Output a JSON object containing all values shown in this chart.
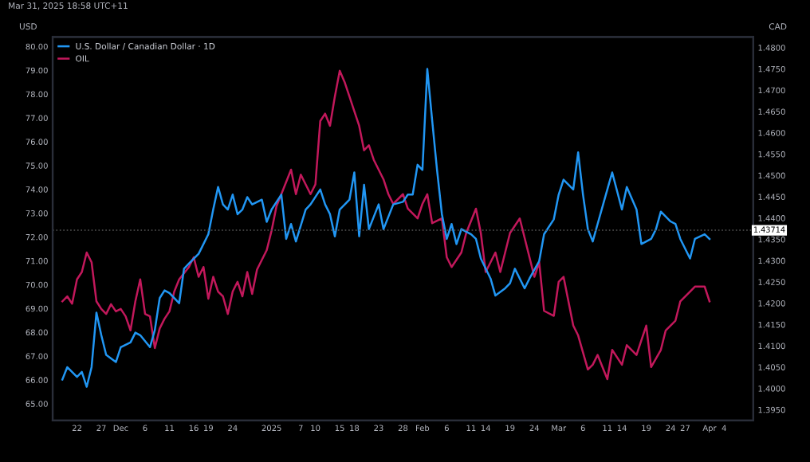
{
  "chart_data": {
    "type": "line",
    "ylabel": "USD",
    "y2label": "CAD",
    "annotations": [
      "Mar 31, 2025 18:58 UTC+11"
    ],
    "xlim": [
      "2024-11-17",
      "2025-04-10"
    ],
    "xticks": [
      {
        "value": "2024-11-22",
        "label": "22"
      },
      {
        "value": "2024-11-27",
        "label": "27"
      },
      {
        "value": "2024-12-01",
        "label": "Dec"
      },
      {
        "value": "2024-12-06",
        "label": "6"
      },
      {
        "value": "2024-12-11",
        "label": "11"
      },
      {
        "value": "2024-12-16",
        "label": "16"
      },
      {
        "value": "2024-12-19",
        "label": "19"
      },
      {
        "value": "2024-12-24",
        "label": "24"
      },
      {
        "value": "2025-01-01",
        "label": "2025"
      },
      {
        "value": "2025-01-07",
        "label": "7"
      },
      {
        "value": "2025-01-10",
        "label": "10"
      },
      {
        "value": "2025-01-15",
        "label": "15"
      },
      {
        "value": "2025-01-18",
        "label": "18"
      },
      {
        "value": "2025-01-23",
        "label": "23"
      },
      {
        "value": "2025-01-28",
        "label": "28"
      },
      {
        "value": "2025-02-01",
        "label": "Feb"
      },
      {
        "value": "2025-02-06",
        "label": "6"
      },
      {
        "value": "2025-02-11",
        "label": "11"
      },
      {
        "value": "2025-02-14",
        "label": "14"
      },
      {
        "value": "2025-02-19",
        "label": "19"
      },
      {
        "value": "2025-02-24",
        "label": "24"
      },
      {
        "value": "2025-03-01",
        "label": "Mar"
      },
      {
        "value": "2025-03-06",
        "label": "6"
      },
      {
        "value": "2025-03-11",
        "label": "11"
      },
      {
        "value": "2025-03-14",
        "label": "14"
      },
      {
        "value": "2025-03-19",
        "label": "19"
      },
      {
        "value": "2025-03-24",
        "label": "24"
      },
      {
        "value": "2025-03-27",
        "label": "27"
      },
      {
        "value": "2025-04-01",
        "label": "Apr"
      },
      {
        "value": "2025-04-04",
        "label": "4"
      }
    ],
    "ylim": [
      64.3,
      80.4
    ],
    "yticks": [
      {
        "value": 65,
        "label": "65.00"
      },
      {
        "value": 66,
        "label": "66.00"
      },
      {
        "value": 67,
        "label": "67.00"
      },
      {
        "value": 68,
        "label": "68.00"
      },
      {
        "value": 69,
        "label": "69.00"
      },
      {
        "value": 70,
        "label": "70.00"
      },
      {
        "value": 71,
        "label": "71.00"
      },
      {
        "value": 72,
        "label": "72.00"
      },
      {
        "value": 73,
        "label": "73.00"
      },
      {
        "value": 74,
        "label": "74.00"
      },
      {
        "value": 75,
        "label": "75.00"
      },
      {
        "value": 76,
        "label": "76.00"
      },
      {
        "value": 77,
        "label": "77.00"
      },
      {
        "value": 78,
        "label": "78.00"
      },
      {
        "value": 79,
        "label": "79.00"
      },
      {
        "value": 80,
        "label": "80.00"
      }
    ],
    "y2lim": [
      1.3925,
      1.4825
    ],
    "y2ticks": [
      {
        "value": 1.395,
        "label": "1.3950"
      },
      {
        "value": 1.4,
        "label": "1.4000"
      },
      {
        "value": 1.405,
        "label": "1.4050"
      },
      {
        "value": 1.41,
        "label": "1.4100"
      },
      {
        "value": 1.415,
        "label": "1.4150"
      },
      {
        "value": 1.42,
        "label": "1.4200"
      },
      {
        "value": 1.425,
        "label": "1.4250"
      },
      {
        "value": 1.43,
        "label": "1.4300"
      },
      {
        "value": 1.435,
        "label": "1.4350"
      },
      {
        "value": 1.44,
        "label": "1.4400"
      },
      {
        "value": 1.445,
        "label": "1.4450"
      },
      {
        "value": 1.45,
        "label": "1.4500"
      },
      {
        "value": 1.455,
        "label": "1.4550"
      },
      {
        "value": 1.46,
        "label": "1.4600"
      },
      {
        "value": 1.465,
        "label": "1.4650"
      },
      {
        "value": 1.47,
        "label": "1.4700"
      },
      {
        "value": 1.475,
        "label": "1.4750"
      },
      {
        "value": 1.48,
        "label": "1.4800"
      }
    ],
    "ref_lines": [
      {
        "axis": "y2",
        "value": 1.43714,
        "label": "1.43714",
        "color": "#555555",
        "line_style": "dotted"
      }
    ],
    "grid": false,
    "legend": "top left",
    "marker": "none",
    "line_style": "solid",
    "series": [
      {
        "name": "U.S. Dollar / Canadian Dollar · 1D",
        "color": "#2196f3",
        "axis": "y2",
        "x": [
          "2024-11-19",
          "2024-11-20",
          "2024-11-22",
          "2024-11-23",
          "2024-11-24",
          "2024-11-25",
          "2024-11-26",
          "2024-11-27",
          "2024-11-28",
          "2024-11-30",
          "2024-12-01",
          "2024-12-03",
          "2024-12-04",
          "2024-12-05",
          "2024-12-07",
          "2024-12-08",
          "2024-12-09",
          "2024-12-10",
          "2024-12-11",
          "2024-12-13",
          "2024-12-14",
          "2024-12-15",
          "2024-12-17",
          "2024-12-19",
          "2024-12-20",
          "2024-12-21",
          "2024-12-22",
          "2024-12-23",
          "2024-12-24",
          "2024-12-25",
          "2024-12-26",
          "2024-12-27",
          "2024-12-28",
          "2024-12-30",
          "2024-12-31",
          "2025-01-01",
          "2025-01-03",
          "2025-01-04",
          "2025-01-05",
          "2025-01-06",
          "2025-01-08",
          "2025-01-09",
          "2025-01-11",
          "2025-01-12",
          "2025-01-13",
          "2025-01-14",
          "2025-01-15",
          "2025-01-17",
          "2025-01-18",
          "2025-01-19",
          "2025-01-20",
          "2025-01-21",
          "2025-01-23",
          "2025-01-24",
          "2025-01-26",
          "2025-01-28",
          "2025-01-29",
          "2025-01-30",
          "2025-01-31",
          "2025-02-01",
          "2025-02-02",
          "2025-02-03",
          "2025-02-04",
          "2025-02-05",
          "2025-02-06",
          "2025-02-07",
          "2025-02-08",
          "2025-02-09",
          "2025-02-11",
          "2025-02-12",
          "2025-02-13",
          "2025-02-15",
          "2025-02-16",
          "2025-02-18",
          "2025-02-19",
          "2025-02-20",
          "2025-02-22",
          "2025-02-23",
          "2025-02-25",
          "2025-02-26",
          "2025-02-28",
          "2025-03-01",
          "2025-03-02",
          "2025-03-04",
          "2025-03-05",
          "2025-03-06",
          "2025-03-07",
          "2025-03-08",
          "2025-03-09",
          "2025-03-11",
          "2025-03-12",
          "2025-03-14",
          "2025-03-15",
          "2025-03-17",
          "2025-03-18",
          "2025-03-20",
          "2025-03-21",
          "2025-03-22",
          "2025-03-24",
          "2025-03-25",
          "2025-03-26",
          "2025-03-28",
          "2025-03-29",
          "2025-03-31",
          "2025-04-01"
        ],
        "values": [
          1.4021,
          1.405,
          1.4027,
          1.4039,
          1.4004,
          1.405,
          1.4178,
          1.4125,
          1.4079,
          1.4062,
          1.4097,
          1.4108,
          1.4131,
          1.4125,
          1.4097,
          1.4137,
          1.4212,
          1.423,
          1.4224,
          1.42,
          1.4281,
          1.4293,
          1.4316,
          1.4362,
          1.442,
          1.4473,
          1.4432,
          1.442,
          1.4455,
          1.4409,
          1.442,
          1.4449,
          1.4432,
          1.4443,
          1.4391,
          1.442,
          1.4455,
          1.4351,
          1.4386,
          1.4345,
          1.442,
          1.4432,
          1.4467,
          1.4432,
          1.4409,
          1.4357,
          1.442,
          1.4443,
          1.4507,
          1.4357,
          1.4478,
          1.4374,
          1.4432,
          1.4374,
          1.4432,
          1.4438,
          1.4455,
          1.4455,
          1.4525,
          1.4513,
          1.475,
          1.4629,
          1.4513,
          1.4409,
          1.4351,
          1.4386,
          1.4339,
          1.4374,
          1.4362,
          1.4351,
          1.4305,
          1.4258,
          1.4218,
          1.4235,
          1.4247,
          1.4281,
          1.4235,
          1.4258,
          1.4299,
          1.4362,
          1.4397,
          1.4455,
          1.449,
          1.4467,
          1.4554,
          1.4455,
          1.4374,
          1.4345,
          1.4386,
          1.4467,
          1.4507,
          1.442,
          1.4473,
          1.442,
          1.4339,
          1.4351,
          1.4374,
          1.4415,
          1.4392,
          1.4386,
          1.4351,
          1.4305,
          1.4351,
          1.4362,
          1.4351
        ]
      },
      {
        "name": "OIL",
        "color": "#c2185b",
        "axis": "y",
        "x": [
          "2024-11-19",
          "2024-11-20",
          "2024-11-21",
          "2024-11-22",
          "2024-11-23",
          "2024-11-24",
          "2024-11-25",
          "2024-11-26",
          "2024-11-27",
          "2024-11-28",
          "2024-11-29",
          "2024-11-30",
          "2024-12-01",
          "2024-12-02",
          "2024-12-03",
          "2024-12-04",
          "2024-12-05",
          "2024-12-06",
          "2024-12-07",
          "2024-12-08",
          "2024-12-09",
          "2024-12-10",
          "2024-12-11",
          "2024-12-12",
          "2024-12-13",
          "2024-12-15",
          "2024-12-16",
          "2024-12-17",
          "2024-12-18",
          "2024-12-19",
          "2024-12-20",
          "2024-12-21",
          "2024-12-22",
          "2024-12-23",
          "2024-12-24",
          "2024-12-25",
          "2024-12-26",
          "2024-12-27",
          "2024-12-28",
          "2024-12-29",
          "2024-12-31",
          "2025-01-01",
          "2025-01-02",
          "2025-01-03",
          "2025-01-05",
          "2025-01-06",
          "2025-01-07",
          "2025-01-09",
          "2025-01-10",
          "2025-01-11",
          "2025-01-12",
          "2025-01-13",
          "2025-01-14",
          "2025-01-15",
          "2025-01-16",
          "2025-01-17",
          "2025-01-18",
          "2025-01-19",
          "2025-01-20",
          "2025-01-21",
          "2025-01-22",
          "2025-01-24",
          "2025-01-25",
          "2025-01-26",
          "2025-01-28",
          "2025-01-29",
          "2025-01-31",
          "2025-02-01",
          "2025-02-02",
          "2025-02-03",
          "2025-02-05",
          "2025-02-06",
          "2025-02-07",
          "2025-02-09",
          "2025-02-10",
          "2025-02-12",
          "2025-02-13",
          "2025-02-14",
          "2025-02-16",
          "2025-02-17",
          "2025-02-18",
          "2025-02-19",
          "2025-02-21",
          "2025-02-23",
          "2025-02-24",
          "2025-02-25",
          "2025-02-26",
          "2025-02-28",
          "2025-03-01",
          "2025-03-02",
          "2025-03-04",
          "2025-03-05",
          "2025-03-07",
          "2025-03-08",
          "2025-03-09",
          "2025-03-11",
          "2025-03-12",
          "2025-03-14",
          "2025-03-15",
          "2025-03-17",
          "2025-03-18",
          "2025-03-19",
          "2025-03-20",
          "2025-03-22",
          "2025-03-23",
          "2025-03-25",
          "2025-03-26",
          "2025-03-28",
          "2025-03-29",
          "2025-03-31",
          "2025-04-01"
        ],
        "values": [
          69.3,
          69.51,
          69.2,
          70.22,
          70.53,
          71.35,
          70.94,
          69.3,
          68.98,
          68.77,
          69.18,
          68.88,
          68.98,
          68.67,
          68.08,
          69.3,
          70.22,
          68.77,
          68.67,
          67.34,
          68.16,
          68.57,
          68.88,
          69.71,
          70.22,
          70.74,
          71.15,
          70.33,
          70.74,
          69.41,
          70.33,
          69.71,
          69.51,
          68.77,
          69.71,
          70.12,
          69.51,
          70.53,
          69.61,
          70.63,
          71.45,
          72.27,
          73.29,
          73.8,
          74.83,
          73.8,
          74.62,
          73.8,
          74.21,
          76.87,
          77.18,
          76.67,
          77.9,
          78.98,
          78.51,
          77.9,
          77.28,
          76.67,
          75.64,
          75.85,
          75.24,
          74.42,
          73.8,
          73.39,
          73.8,
          73.19,
          72.78,
          73.39,
          73.8,
          72.58,
          72.78,
          71.15,
          70.74,
          71.35,
          72.17,
          73.19,
          72.17,
          70.53,
          71.35,
          70.53,
          71.35,
          72.17,
          72.78,
          71.15,
          70.33,
          70.94,
          68.9,
          68.69,
          70.12,
          70.33,
          68.28,
          67.87,
          66.44,
          66.64,
          67.05,
          66.03,
          67.26,
          66.64,
          67.46,
          67.05,
          67.67,
          68.28,
          66.54,
          67.26,
          68.08,
          68.49,
          69.3,
          69.71,
          69.92,
          69.92,
          69.3
        ]
      }
    ]
  }
}
